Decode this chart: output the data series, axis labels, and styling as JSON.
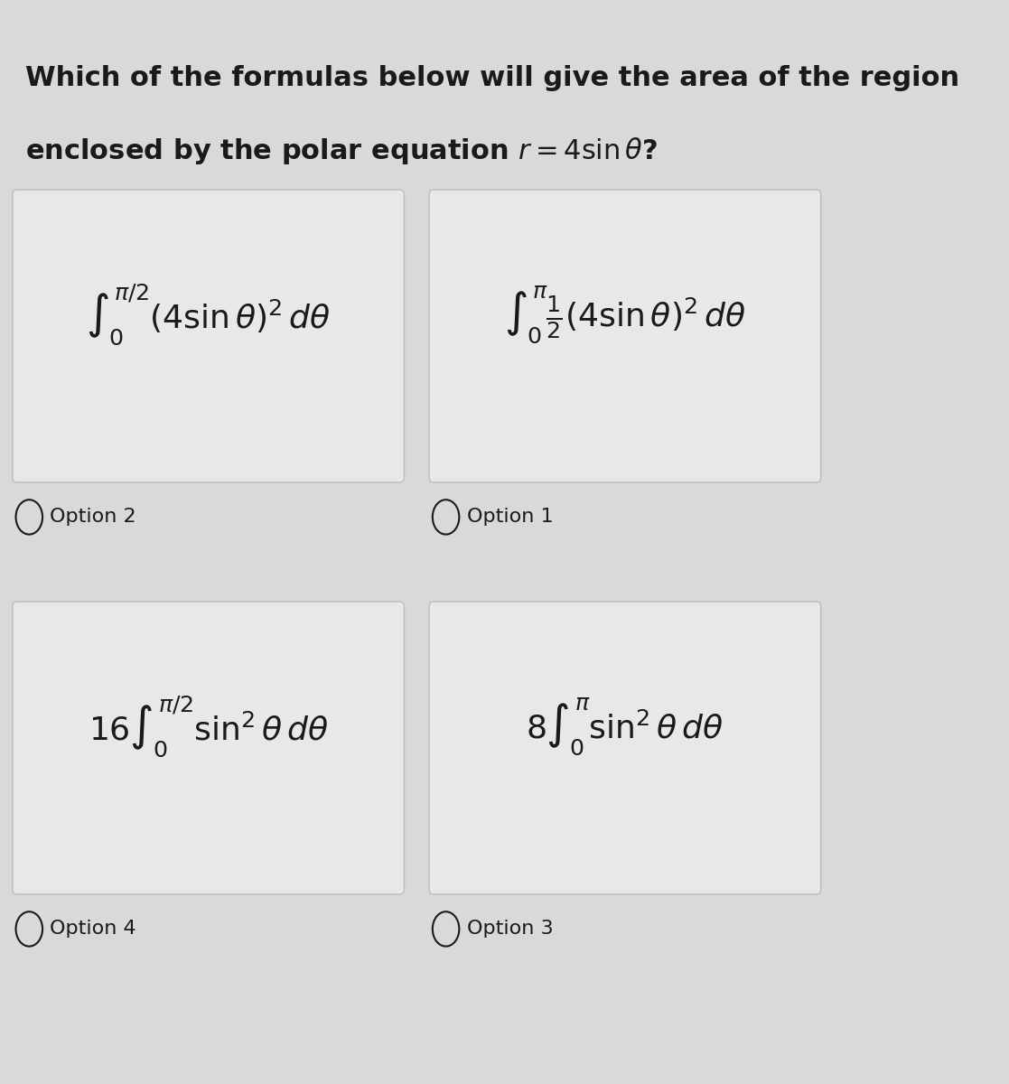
{
  "title_line1": "Which of the formulas below will give the area of the region",
  "title_line2": "enclosed by the polar equation r = 4 sin θ?",
  "background_color": "#d9d9d9",
  "card_color": "#e8e8e8",
  "text_color": "#1a1a1a",
  "options": [
    {
      "formula": "$\\int_0^{\\pi/2}(4\\sin\\theta)^2\\,d\\theta$",
      "label": "Option 2",
      "col": 0,
      "row": 0
    },
    {
      "formula": "$\\int_0^{\\pi}\\frac{1}{2}(4\\sin\\theta)^2\\,d\\theta$",
      "label": "Option 1",
      "col": 1,
      "row": 0
    },
    {
      "formula": "$16\\int_0^{\\pi/2}\\sin^2\\theta\\,d\\theta$",
      "label": "Option 4",
      "col": 0,
      "row": 1
    },
    {
      "formula": "$8\\int_0^{\\pi}\\sin^2\\theta\\,d\\theta$",
      "label": "Option 3",
      "col": 1,
      "row": 1
    }
  ],
  "title_fontsize": 22,
  "formula_fontsize": 26,
  "label_fontsize": 16
}
